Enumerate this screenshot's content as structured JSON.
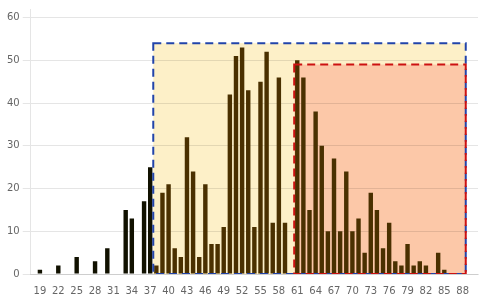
{
  "chart_data": {
    "type": "bar",
    "x": [
      19,
      20,
      21,
      22,
      23,
      24,
      25,
      26,
      27,
      28,
      29,
      30,
      31,
      32,
      33,
      34,
      35,
      36,
      37,
      38,
      39,
      40,
      41,
      42,
      43,
      44,
      45,
      46,
      47,
      48,
      49,
      50,
      51,
      52,
      53,
      54,
      55,
      56,
      57,
      58,
      59,
      60,
      61,
      62,
      63,
      64,
      65,
      66,
      67,
      68,
      69,
      70,
      71,
      72,
      73,
      74,
      75,
      76,
      77,
      78,
      79,
      80,
      81,
      82,
      83,
      84,
      85,
      86,
      87,
      88
    ],
    "values": [
      1,
      0,
      0,
      2,
      0,
      0,
      4,
      0,
      0,
      3,
      0,
      6,
      0,
      0,
      15,
      13,
      0,
      17,
      25,
      2,
      19,
      21,
      6,
      4,
      32,
      24,
      4,
      21,
      7,
      7,
      11,
      42,
      51,
      53,
      43,
      11,
      45,
      52,
      12,
      46,
      12,
      0,
      50,
      46,
      15,
      38,
      30,
      10,
      27,
      10,
      24,
      10,
      13,
      5,
      19,
      15,
      6,
      12,
      3,
      2,
      7,
      2,
      3,
      2,
      0,
      5,
      1,
      0,
      0,
      0
    ],
    "colors": [
      "#111100",
      "#111100",
      "#111100",
      "#111100",
      "#111100",
      "#111100",
      "#111100",
      "#111100",
      "#111100",
      "#111100",
      "#111100",
      "#111100",
      "#111100",
      "#111100",
      "#111100",
      "#111100",
      "#111100",
      "#111100",
      "#111100",
      "#4a3000",
      "#4a3000",
      "#4a3000",
      "#4a3000",
      "#4a3000",
      "#4a3000",
      "#4a3000",
      "#4a3000",
      "#4a3000",
      "#4a3000",
      "#4a3000",
      "#4a3000",
      "#4a3000",
      "#4a3000",
      "#4a3000",
      "#4a3000",
      "#4a3000",
      "#4a3000",
      "#4a3000",
      "#4a3000",
      "#4a3000",
      "#4a3000",
      "#4a3000",
      "#4a3000",
      "#4a3000",
      "#4a3000",
      "#4a3000",
      "#4a3000",
      "#4a3000",
      "#4a3000",
      "#4a3000",
      "#4a3000",
      "#4a3000",
      "#4a3000",
      "#4a3000",
      "#4a3000",
      "#4a3000",
      "#4a3000",
      "#4a3000",
      "#4a3000",
      "#4a3000",
      "#4a3000",
      "#4a3000",
      "#4a3000",
      "#4a3000",
      "#4a3000",
      "#4a3000",
      "#4a3000",
      "#4a3000",
      "#4a3000",
      "#4a3000"
    ],
    "regions": [
      {
        "x": [
          37.5,
          88.5
        ],
        "y": [
          0,
          54
        ],
        "color": "#fdf0c8",
        "edge_color": "#2244aa",
        "line_style": "dashed"
      },
      {
        "x": [
          60.5,
          88.5
        ],
        "y": [
          0,
          49
        ],
        "color": "#fcc8a8",
        "edge_color": "#cc1111",
        "line_style": "dashed"
      }
    ],
    "xlim": [
      17.5,
      90.5
    ],
    "xticks": [
      19,
      22,
      25,
      28,
      31,
      34,
      37,
      40,
      43,
      46,
      49,
      52,
      55,
      58,
      61,
      64,
      67,
      70,
      73,
      76,
      79,
      82,
      85,
      88
    ],
    "ylim": [
      0,
      62
    ],
    "yticks": [
      0,
      10,
      20,
      30,
      40,
      50,
      60
    ],
    "grid": "y"
  }
}
